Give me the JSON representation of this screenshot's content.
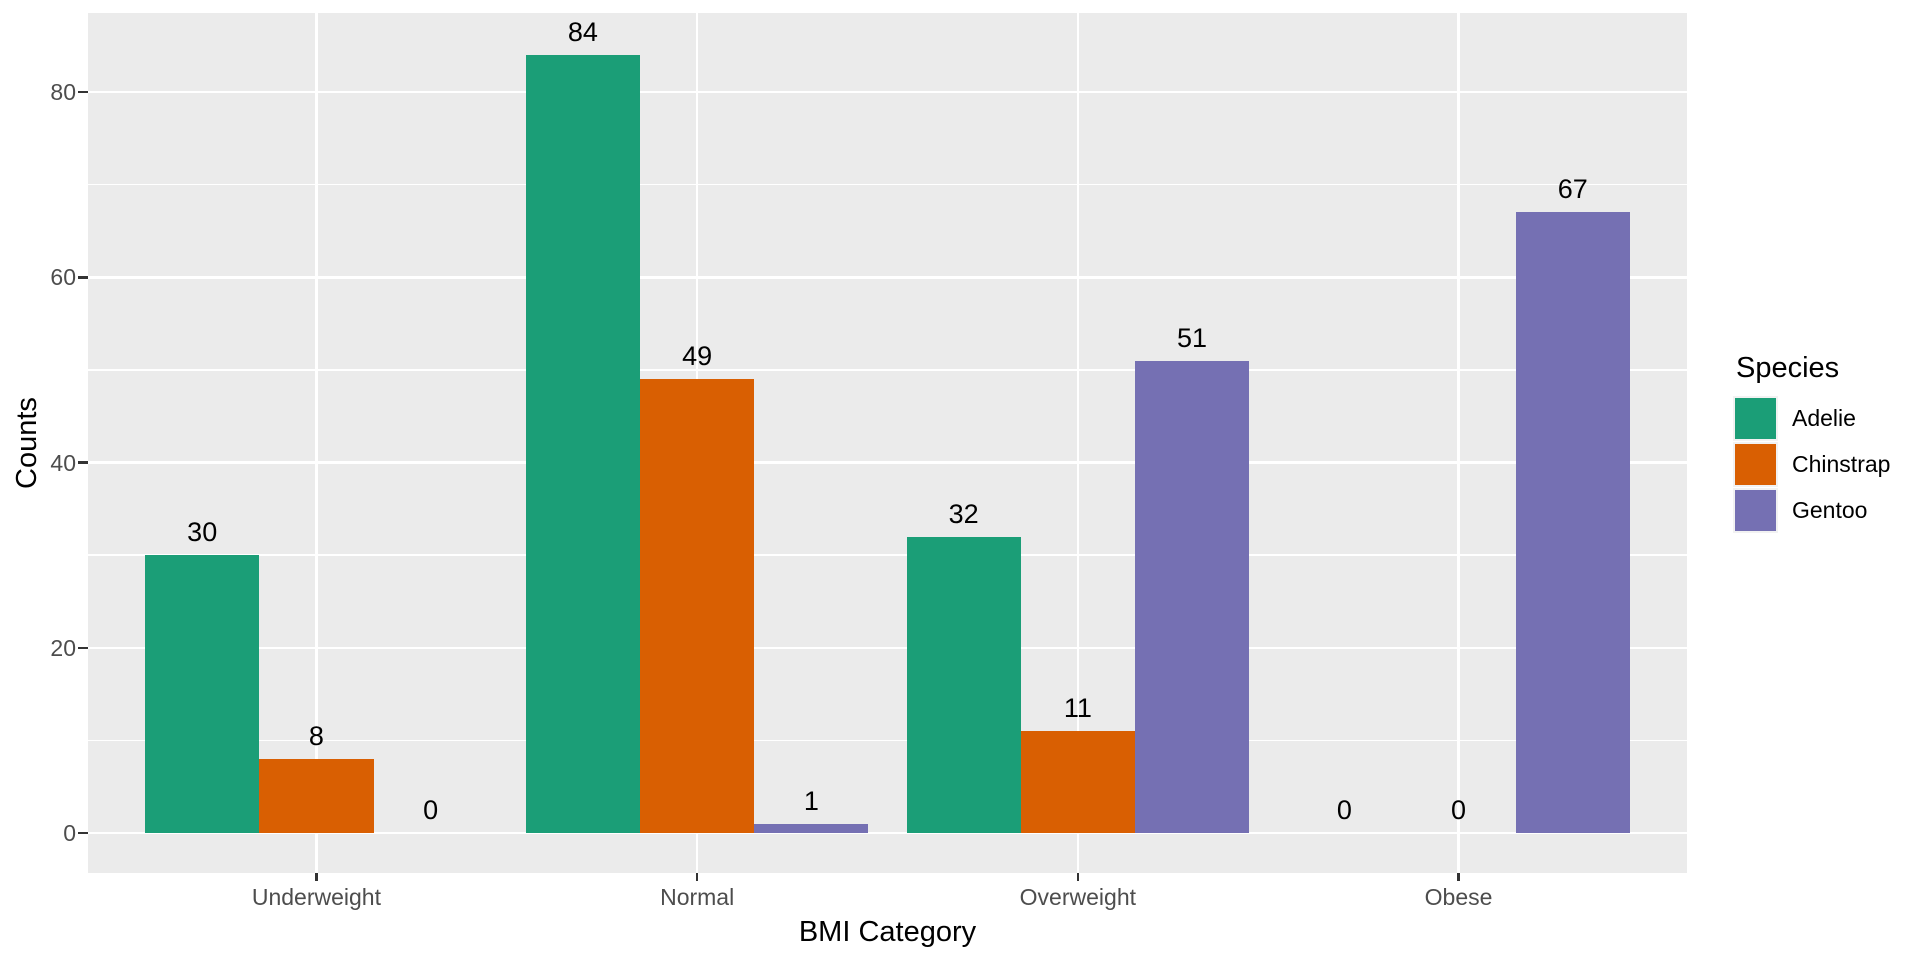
{
  "chart_data": {
    "type": "bar",
    "title": "",
    "categories": [
      "Underweight",
      "Normal",
      "Overweight",
      "Obese"
    ],
    "series": [
      {
        "name": "Adelie",
        "color": "#1B9E77",
        "values": [
          30,
          84,
          32,
          0
        ]
      },
      {
        "name": "Chinstrap",
        "color": "#D95F02",
        "values": [
          8,
          49,
          11,
          0
        ]
      },
      {
        "name": "Gentoo",
        "color": "#7570B3",
        "values": [
          0,
          1,
          51,
          67
        ]
      }
    ],
    "xlabel": "BMI Category",
    "ylabel": "Counts",
    "ylim": [
      0,
      88.2
    ],
    "y_ticks": [
      0,
      20,
      40,
      60,
      80
    ],
    "y_minor_ticks": [
      10,
      30,
      50,
      70
    ],
    "bar_value_labels": true,
    "grid": true,
    "legend": {
      "title": "Species",
      "position": "right",
      "entries": [
        "Adelie",
        "Chinstrap",
        "Gentoo"
      ]
    }
  },
  "style": {
    "page_bg": "#FFFFFF",
    "panel_bg": "#EBEBEB",
    "grid_color": "#FFFFFF",
    "tick_mark_color": "#333333",
    "tick_label_color": "#4D4D4D",
    "text_color": "#000000",
    "legend_key_bg": "#F2F2F2"
  }
}
